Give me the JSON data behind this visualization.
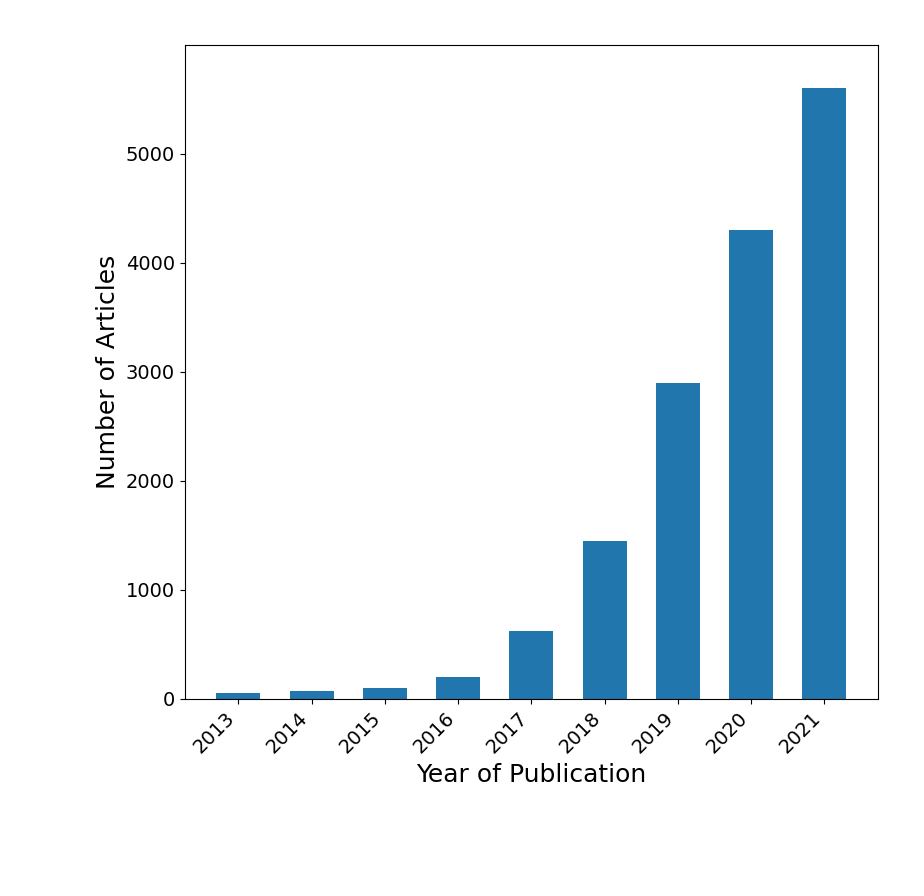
{
  "years": [
    "2013",
    "2014",
    "2015",
    "2016",
    "2017",
    "2018",
    "2019",
    "2020",
    "2021"
  ],
  "values": [
    50,
    70,
    100,
    200,
    620,
    1450,
    2900,
    4300,
    5600
  ],
  "bar_color": "#2176ae",
  "xlabel": "Year of Publication",
  "ylabel": "Number of Articles",
  "ylim": [
    0,
    6000
  ],
  "yticks": [
    0,
    1000,
    2000,
    3000,
    4000,
    5000
  ],
  "xlabel_fontsize": 18,
  "ylabel_fontsize": 18,
  "tick_fontsize": 14,
  "background_color": "#ffffff",
  "fig_background_color": "#ffffff"
}
